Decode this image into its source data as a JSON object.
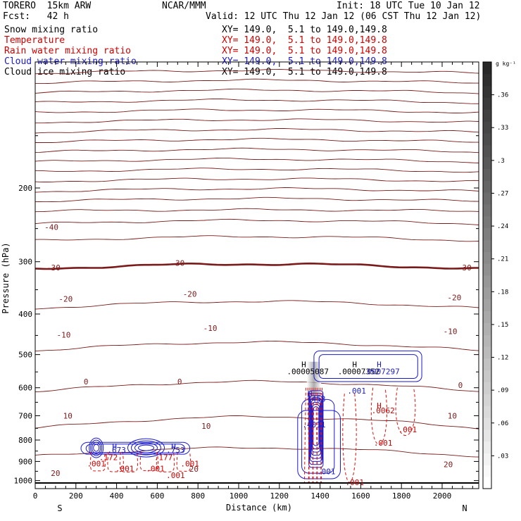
{
  "header": {
    "model": "TORERO  15km ARW",
    "org": "NCAR/MMM",
    "init": "Init: 18 UTC Tue 10 Jan 12",
    "fcst": "Fcst:   42 h",
    "valid": "Valid: 12 UTC Thu 12 Jan 12 (06 CST Thu 12 Jan 12)"
  },
  "fields": [
    {
      "name": "Snow mixing ratio",
      "xy": "",
      "color": "#000000"
    },
    {
      "name": "Temperature",
      "xy": "XY= 149.0,  5.1 to 149.0,149.8",
      "color": "#d00000"
    },
    {
      "name": "Rain water mixing ratio",
      "xy": "XY= 149.0,  5.1 to 149.0,149.8",
      "color": "#d00000"
    },
    {
      "name": "Cloud water mixing ratio",
      "xy": "XY= 149.0,  5.1 to 149.0,149.8",
      "color": "#1a1acc"
    },
    {
      "name": "Cloud ice mixing ratio",
      "xy": "XY= 149.0,  5.1 to 149.0,149.8",
      "color": "#000000"
    }
  ],
  "xy_black": "XY= 149.0,  5.1 to 149.0,149.8",
  "chart_data": {
    "type": "contour cross-section",
    "ylabel": "Pressure (hPa)",
    "xlabel": "Distance (km)",
    "x_ticks": [
      0,
      200,
      400,
      600,
      800,
      1000,
      1200,
      1400,
      1600,
      1800,
      2000
    ],
    "y_ticks": [
      200,
      300,
      400,
      500,
      600,
      700,
      800,
      900,
      1000
    ],
    "xlim": [
      0,
      2180
    ],
    "ylim": [
      1045,
      100
    ],
    "y_scale": "log-pressure",
    "x_left_label": "S",
    "x_right_label": "N",
    "colorbar": {
      "unit": "g kg⁻¹",
      "ticks": [
        ".03",
        ".06",
        ".09",
        ".12",
        ".15",
        ".18",
        ".21",
        ".24",
        ".27",
        ".3",
        ".33",
        ".36"
      ]
    },
    "temperature_labels": [
      {
        "text": "-40",
        "x": 80,
        "p": 248
      },
      {
        "text": "-30",
        "x": 90,
        "p": 310
      },
      {
        "text": "-30",
        "x": 700,
        "p": 302
      },
      {
        "text": "-30",
        "x": 2110,
        "p": 310
      },
      {
        "text": "-20",
        "x": 150,
        "p": 368
      },
      {
        "text": "-20",
        "x": 760,
        "p": 358
      },
      {
        "text": "-20",
        "x": 2060,
        "p": 365
      },
      {
        "text": "-10",
        "x": 140,
        "p": 448
      },
      {
        "text": "-10",
        "x": 860,
        "p": 432
      },
      {
        "text": "-10",
        "x": 2040,
        "p": 440
      },
      {
        "text": "0",
        "x": 250,
        "p": 580
      },
      {
        "text": "0",
        "x": 710,
        "p": 580
      },
      {
        "text": "0",
        "x": 2090,
        "p": 592
      },
      {
        "text": "10",
        "x": 160,
        "p": 700
      },
      {
        "text": "10",
        "x": 840,
        "p": 740
      },
      {
        "text": "10",
        "x": 2050,
        "p": 700
      },
      {
        "text": "20",
        "x": 100,
        "p": 960
      },
      {
        "text": "20",
        "x": 780,
        "p": 938
      },
      {
        "text": "20",
        "x": 2030,
        "p": 915
      }
    ],
    "maxima_labels": [
      {
        "text": "H",
        "x": 1320,
        "p": 528,
        "color": "#000000"
      },
      {
        "text": ".00005087",
        "x": 1340,
        "p": 548,
        "color": "#000000"
      },
      {
        "text": "H",
        "x": 1570,
        "p": 528,
        "color": "#000000"
      },
      {
        "text": ".00007352",
        "x": 1590,
        "p": 548,
        "color": "#000000"
      },
      {
        "text": "H",
        "x": 1690,
        "p": 528,
        "color": "#1a1acc"
      },
      {
        "text": ".0007297",
        "x": 1700,
        "p": 548,
        "color": "#1a1acc"
      },
      {
        "text": ".001",
        "x": 1580,
        "p": 610,
        "color": "#1a1acc"
      },
      {
        "text": "H",
        "x": 1350,
        "p": 620,
        "color": "#1a1acc"
      },
      {
        "text": ".7453",
        "x": 1370,
        "p": 638,
        "color": "#1a1acc"
      },
      {
        "text": "H",
        "x": 1690,
        "p": 662,
        "color": "#d00000"
      },
      {
        "text": ".0062",
        "x": 1710,
        "p": 680,
        "color": "#d00000"
      },
      {
        "text": ".4011",
        "x": 1370,
        "p": 735,
        "color": "#1a1acc"
      },
      {
        "text": ".001",
        "x": 1830,
        "p": 755,
        "color": "#d00000"
      },
      {
        "text": ".001",
        "x": 1710,
        "p": 812,
        "color": "#d00000"
      },
      {
        "text": "H",
        "x": 390,
        "p": 828,
        "color": "#1a1acc"
      },
      {
        "text": ".673",
        "x": 400,
        "p": 845,
        "color": "#1a1acc"
      },
      {
        "text": "H",
        "x": 680,
        "p": 828,
        "color": "#1a1acc"
      },
      {
        "text": ".753",
        "x": 690,
        "p": 845,
        "color": "#1a1acc"
      },
      {
        "text": ".172",
        "x": 360,
        "p": 880,
        "color": "#d00000"
      },
      {
        "text": ".177",
        "x": 630,
        "p": 880,
        "color": "#d00000"
      },
      {
        "text": ".001",
        "x": 300,
        "p": 910,
        "color": "#d00000"
      },
      {
        "text": ".001",
        "x": 440,
        "p": 935,
        "color": "#d00000"
      },
      {
        "text": ".001",
        "x": 590,
        "p": 935,
        "color": "#d00000"
      },
      {
        "text": ".001",
        "x": 760,
        "p": 910,
        "color": "#d00000"
      },
      {
        "text": ".001",
        "x": 690,
        "p": 970,
        "color": "#d00000"
      },
      {
        "text": ".001",
        "x": 1430,
        "p": 950,
        "color": "#1a1acc"
      },
      {
        "text": ".001",
        "x": 1570,
        "p": 1010,
        "color": "#d00000"
      }
    ]
  }
}
